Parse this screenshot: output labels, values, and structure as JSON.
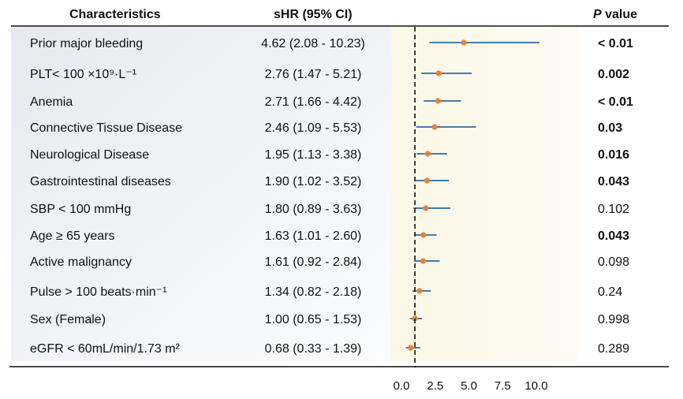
{
  "chart_data": {
    "type": "forest",
    "headers": {
      "characteristics": "Characteristics",
      "shr": "sHR (95% CI)",
      "p_italic": "P",
      "p_rest": " value"
    },
    "rows": [
      {
        "label": "Prior major bleeding",
        "hr_text": "4.62 (2.08 - 10.23)",
        "est": 4.62,
        "lo": 2.08,
        "hi": 10.23,
        "p": "< 0.01",
        "sig": true
      },
      {
        "label": "PLT< 100 ×10⁹·L⁻¹",
        "hr_text": "2.76 (1.47 - 5.21)",
        "est": 2.76,
        "lo": 1.47,
        "hi": 5.21,
        "p": "0.002",
        "sig": true
      },
      {
        "label": "Anemia",
        "hr_text": "2.71 (1.66 - 4.42)",
        "est": 2.71,
        "lo": 1.66,
        "hi": 4.42,
        "p": "< 0.01",
        "sig": true
      },
      {
        "label": "Connective Tissue Disease",
        "hr_text": "2.46 (1.09 - 5.53)",
        "est": 2.46,
        "lo": 1.09,
        "hi": 5.53,
        "p": "0.03",
        "sig": true
      },
      {
        "label": "Neurological Disease",
        "hr_text": "1.95 (1.13 - 3.38)",
        "est": 1.95,
        "lo": 1.13,
        "hi": 3.38,
        "p": "0.016",
        "sig": true
      },
      {
        "label": "Gastrointestinal diseases",
        "hr_text": "1.90 (1.02 - 3.52)",
        "est": 1.9,
        "lo": 1.02,
        "hi": 3.52,
        "p": "0.043",
        "sig": true
      },
      {
        "label": "SBP < 100 mmHg",
        "hr_text": "1.80 (0.89 - 3.63)",
        "est": 1.8,
        "lo": 0.89,
        "hi": 3.63,
        "p": "0.102",
        "sig": false
      },
      {
        "label": "Age ≥ 65 years",
        "hr_text": "1.63 (1.01 - 2.60)",
        "est": 1.63,
        "lo": 1.01,
        "hi": 2.6,
        "p": "0.043",
        "sig": true
      },
      {
        "label": "Active malignancy",
        "hr_text": "1.61 (0.92 - 2.84)",
        "est": 1.61,
        "lo": 0.92,
        "hi": 2.84,
        "p": "0.098",
        "sig": false
      },
      {
        "label": "Pulse > 100 beats·min⁻¹",
        "hr_text": "1.34 (0.82 - 2.18)",
        "est": 1.34,
        "lo": 0.82,
        "hi": 2.18,
        "p": "0.24",
        "sig": false
      },
      {
        "label": "Sex (Female)",
        "hr_text": "1.00 (0.65 - 1.53)",
        "est": 1.0,
        "lo": 0.65,
        "hi": 1.53,
        "p": "0.998",
        "sig": false
      },
      {
        "label": "eGFR < 60mL/min/1.73 m²",
        "hr_text": "0.68 (0.33 - 1.39)",
        "est": 0.68,
        "lo": 0.33,
        "hi": 1.39,
        "p": "0.289",
        "sig": false
      }
    ],
    "x_ticks": [
      "0.0",
      "2.5",
      "5.0",
      "7.5",
      "10.0"
    ],
    "x_tick_values": [
      0,
      2.5,
      5,
      7.5,
      10
    ],
    "xlim": [
      0,
      10.5
    ],
    "reference_line": 1,
    "grid": false,
    "colors": {
      "ci_line": "#2a6aa3",
      "point": "#e8823a",
      "ref_line": "#111111",
      "label_band_start": "#e6eaf0",
      "label_band_end": "#fbfcfd",
      "plot_band_start": "#fbf7e6",
      "plot_band_end": "#fdfbf3"
    }
  }
}
